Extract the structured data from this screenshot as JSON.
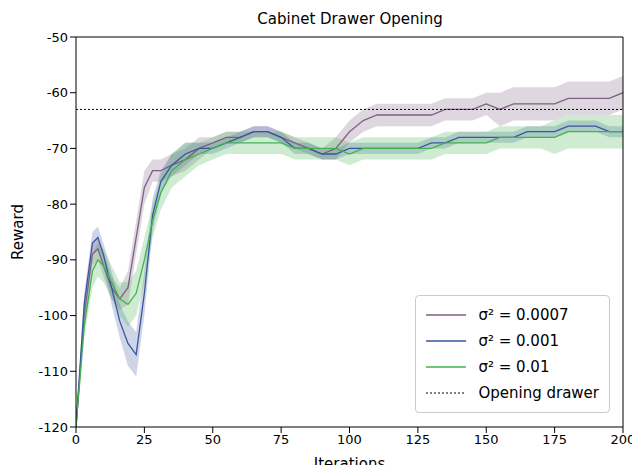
{
  "chart_data": {
    "type": "line",
    "title": "Cabinet Drawer Opening",
    "x_label": "Iterations",
    "y_label": "Reward",
    "x": [
      0,
      3,
      6,
      8,
      10,
      13,
      16,
      19,
      22,
      25,
      28,
      31,
      35,
      40,
      45,
      50,
      55,
      60,
      65,
      70,
      75,
      80,
      85,
      90,
      95,
      100,
      105,
      110,
      115,
      120,
      125,
      130,
      135,
      140,
      145,
      150,
      155,
      160,
      165,
      170,
      175,
      180,
      185,
      190,
      195,
      200
    ],
    "series": [
      {
        "name": "σ² = 0.0007",
        "color": "#7f5f84",
        "values": [
          -120,
          -100,
          -89,
          -88,
          -91,
          -95,
          -97,
          -95,
          -86,
          -77,
          -74,
          -74,
          -73,
          -72,
          -70,
          -69,
          -68,
          -68,
          -67,
          -67,
          -68,
          -69,
          -70,
          -71,
          -70,
          -67,
          -65,
          -64,
          -64,
          -64,
          -64,
          -64,
          -63,
          -63,
          -63,
          -62,
          -63,
          -62,
          -62,
          -62,
          -62,
          -61,
          -61,
          -61,
          -61,
          -60
        ],
        "errors": [
          1,
          2,
          2,
          2,
          2,
          2,
          2,
          3,
          3,
          3,
          2,
          2,
          2,
          2,
          2,
          1,
          1,
          1,
          1,
          1,
          1,
          1,
          1,
          1,
          2,
          2,
          2,
          2,
          2,
          2,
          2,
          2,
          2,
          2,
          2,
          2,
          3,
          3,
          3,
          3,
          3,
          3,
          3,
          3,
          3,
          3
        ]
      },
      {
        "name": "σ² = 0.001",
        "color": "#3a56a0",
        "values": [
          -120,
          -98,
          -87,
          -86,
          -89,
          -95,
          -101,
          -105,
          -107,
          -96,
          -82,
          -76,
          -73,
          -71,
          -70,
          -70,
          -69,
          -68,
          -67,
          -67,
          -68,
          -70,
          -70,
          -71,
          -71,
          -70,
          -70,
          -70,
          -70,
          -70,
          -70,
          -69,
          -69,
          -68,
          -68,
          -68,
          -68,
          -68,
          -67,
          -67,
          -67,
          -66,
          -66,
          -66,
          -67,
          -67
        ],
        "errors": [
          1,
          2,
          2,
          2,
          2,
          3,
          3,
          4,
          4,
          4,
          3,
          2,
          2,
          2,
          1,
          1,
          1,
          1,
          1,
          1,
          1,
          1,
          1,
          1,
          1,
          1,
          1,
          1,
          1,
          1,
          1,
          1,
          1,
          1,
          1,
          1,
          1,
          1,
          1,
          1,
          1,
          1,
          1,
          1,
          1,
          1
        ]
      },
      {
        "name": "σ² = 0.01",
        "color": "#3fb34f",
        "values": [
          -120,
          -102,
          -92,
          -90,
          -91,
          -94,
          -97,
          -98,
          -96,
          -90,
          -83,
          -78,
          -74,
          -72,
          -71,
          -70,
          -69,
          -69,
          -69,
          -69,
          -69,
          -70,
          -70,
          -70,
          -70,
          -71,
          -70,
          -70,
          -70,
          -70,
          -70,
          -70,
          -69,
          -69,
          -69,
          -69,
          -68,
          -68,
          -68,
          -68,
          -68,
          -67,
          -67,
          -67,
          -67,
          -67
        ],
        "errors": [
          1,
          2,
          3,
          3,
          3,
          3,
          3,
          4,
          4,
          4,
          3,
          3,
          3,
          3,
          2,
          2,
          2,
          2,
          2,
          2,
          2,
          2,
          2,
          2,
          2,
          2,
          2,
          2,
          2,
          2,
          2,
          2,
          2,
          2,
          2,
          2,
          2,
          2,
          2,
          2,
          3,
          3,
          3,
          3,
          3,
          3
        ]
      }
    ],
    "reference_line": {
      "name": "Opening drawer",
      "value": -63,
      "color": "#000000",
      "line_style": "dotted"
    },
    "xlim": [
      0,
      200
    ],
    "xticks": [
      0,
      25,
      50,
      75,
      100,
      125,
      150,
      175,
      200
    ],
    "ylim": [
      -120,
      -50
    ],
    "yticks": [
      -120,
      -110,
      -100,
      -90,
      -80,
      -70,
      -60,
      -50
    ],
    "grid": false,
    "legend": "lower right"
  }
}
